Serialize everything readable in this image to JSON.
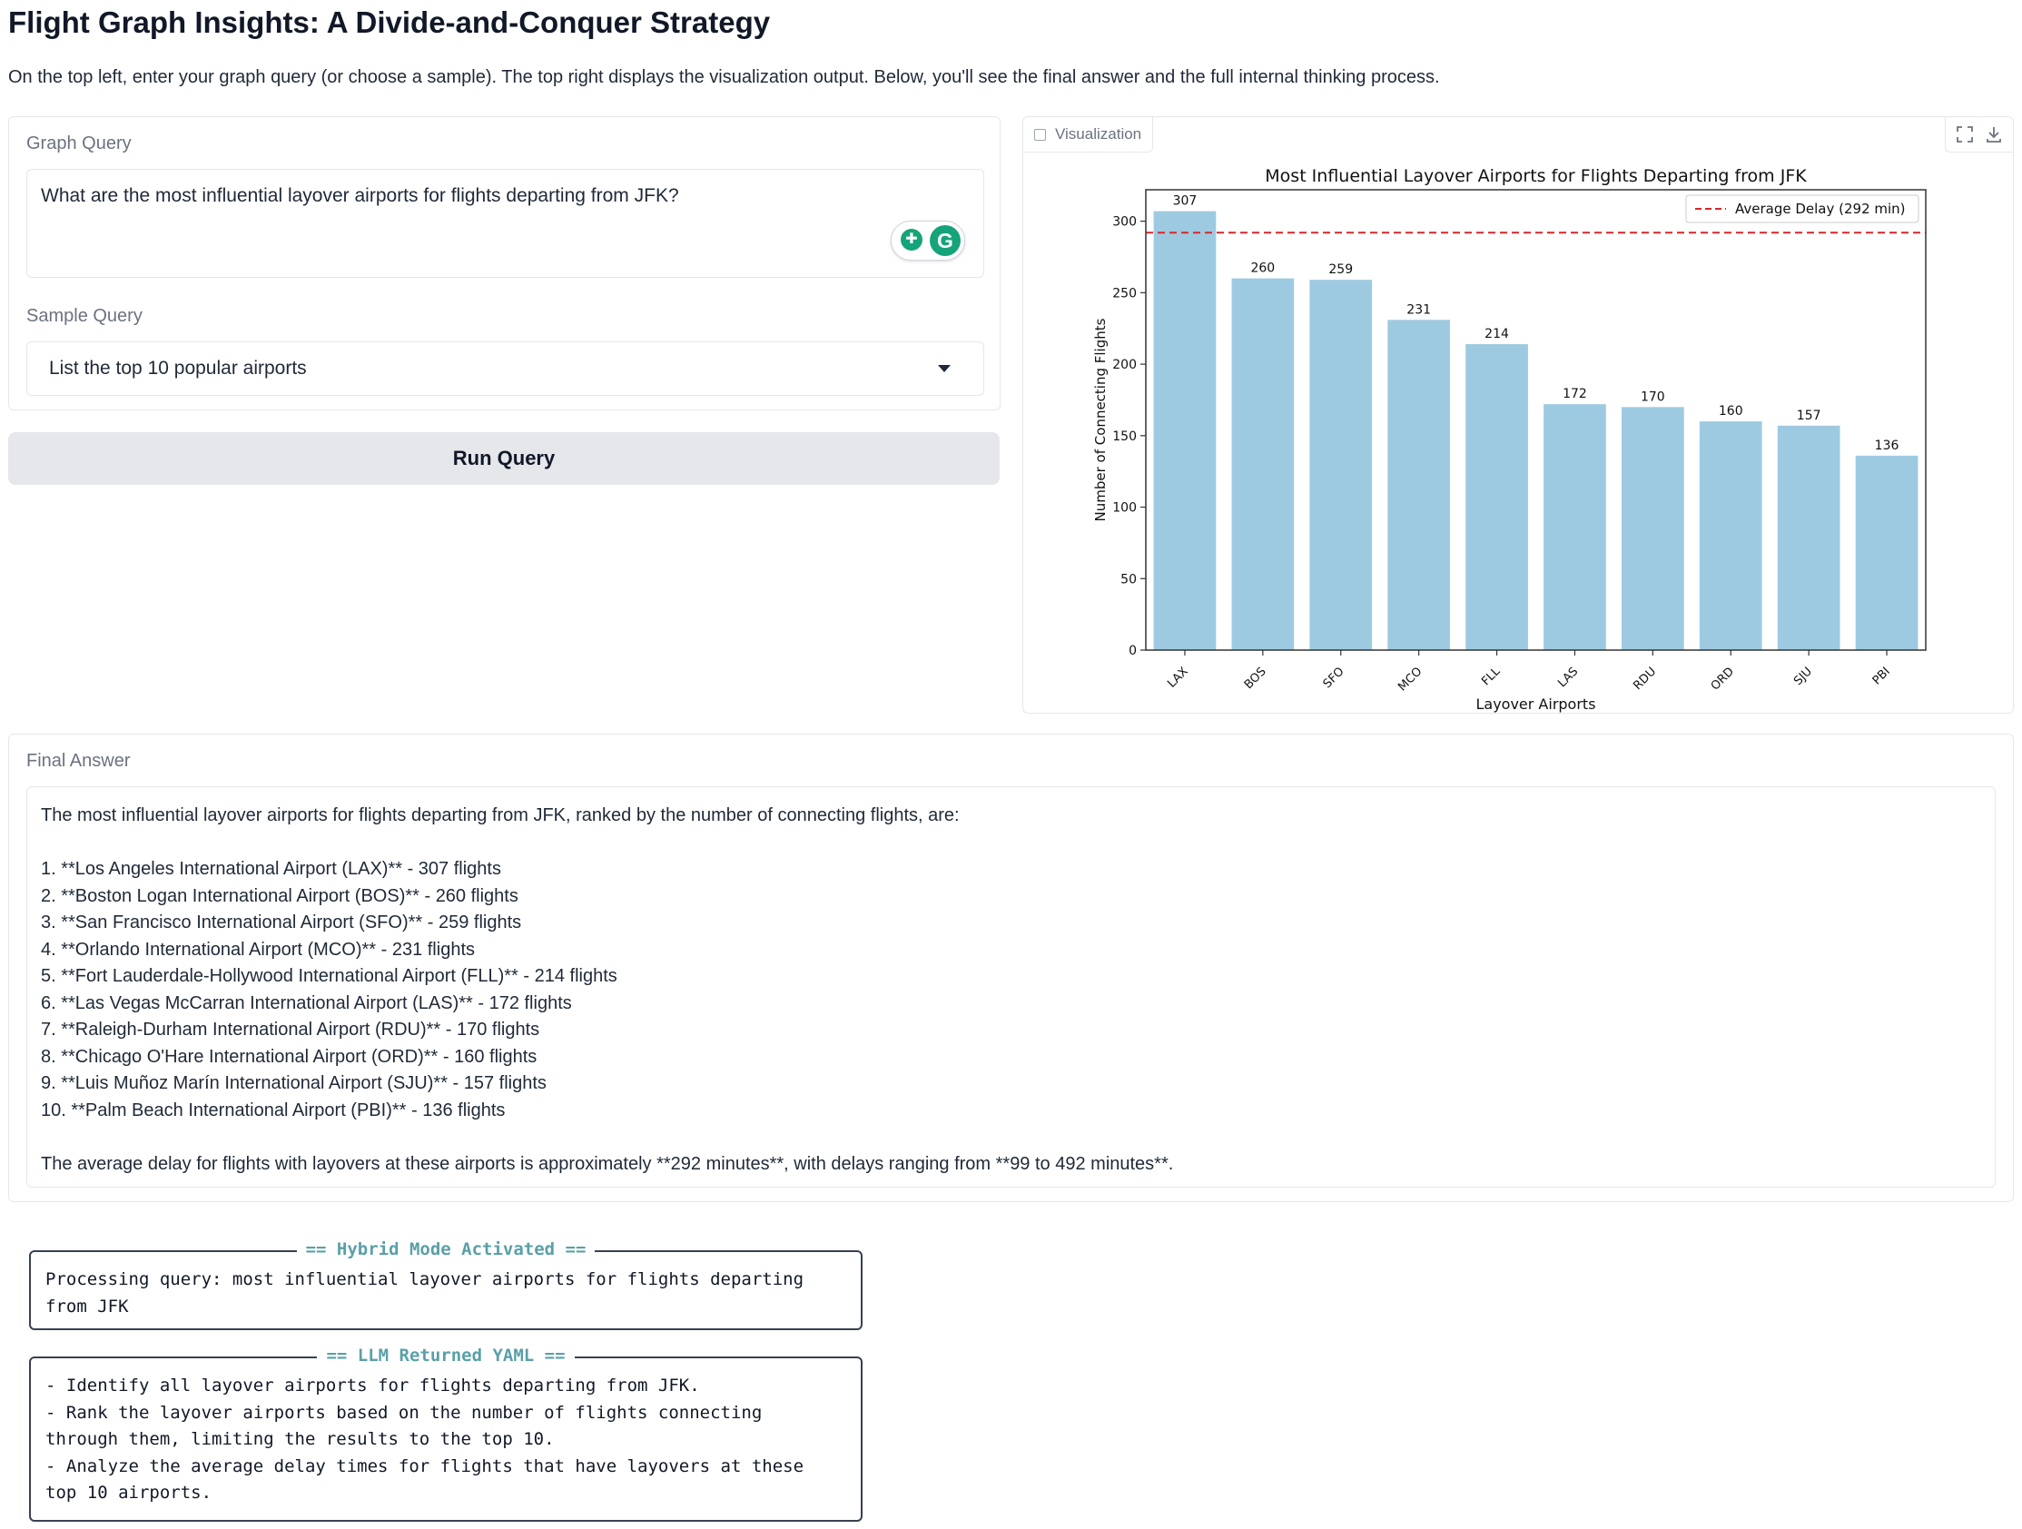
{
  "page": {
    "title": "Flight Graph Insights: A Divide-and-Conquer Strategy",
    "description": "On the top left, enter your graph query (or choose a sample). The top right displays the visualization output. Below, you'll see the final answer and the full internal thinking process."
  },
  "query_panel": {
    "label": "Graph Query",
    "query_value": "What are the most influential layover airports for flights departing from JFK?",
    "sample_label": "Sample Query",
    "sample_value": "List the top 10 popular airports",
    "run_label": "Run Query"
  },
  "viz_panel": {
    "tab_label": "Visualization",
    "icons": [
      "image-icon",
      "fullscreen-icon",
      "download-icon"
    ]
  },
  "chart_data": {
    "type": "bar",
    "title": "Most Influential Layover Airports for Flights Departing from JFK",
    "xlabel": "Layover Airports",
    "ylabel": "Number of Connecting Flights",
    "categories": [
      "LAX",
      "BOS",
      "SFO",
      "MCO",
      "FLL",
      "LAS",
      "RDU",
      "ORD",
      "SJU",
      "PBI"
    ],
    "values": [
      307,
      260,
      259,
      231,
      214,
      172,
      170,
      160,
      157,
      136
    ],
    "ylim": [
      0,
      322
    ],
    "yticks": [
      0,
      50,
      100,
      150,
      200,
      250,
      300
    ],
    "reference_line": {
      "value": 292,
      "label": "Average Delay (292 min)",
      "style": "dashed",
      "color": "#d62728"
    },
    "bar_color": "#9ecae1",
    "legend_position": "top-right",
    "grid": false
  },
  "answer_panel": {
    "label": "Final Answer",
    "intro": "The most influential layover airports for flights departing from JFK, ranked by the number of connecting flights, are:",
    "items": [
      "1. **Los Angeles International Airport (LAX)** - 307 flights",
      "2. **Boston Logan International Airport (BOS)** - 260 flights",
      "3. **San Francisco International Airport (SFO)** - 259 flights",
      "4. **Orlando International Airport (MCO)** - 231 flights",
      "5. **Fort Lauderdale-Hollywood International Airport (FLL)** - 214 flights",
      "6. **Las Vegas McCarran International Airport (LAS)** - 172 flights",
      "7. **Raleigh-Durham International Airport (RDU)** - 170 flights",
      "8. **Chicago O'Hare International Airport (ORD)** - 160 flights",
      "9. **Luis Muñoz Marín International Airport (SJU)** - 157 flights",
      "10. **Palm Beach International Airport (PBI)** - 136 flights"
    ],
    "summary": "The average delay for flights with layovers at these airports is approximately **292 minutes**, with delays ranging from **99 to 492 minutes**."
  },
  "logs": [
    {
      "header": "== Hybrid Mode Activated ==",
      "lines": [
        "Processing query: most influential layover airports for flights departing",
        "from JFK"
      ]
    },
    {
      "header": "== LLM Returned YAML ==",
      "lines": [
        "- Identify all layover airports for flights departing from JFK.",
        "- Rank the layover airports based on the number of flights connecting",
        "through them, limiting the results to the top 10.",
        "- Analyze the average delay times for flights that have layovers at these",
        "top 10 airports."
      ]
    }
  ]
}
